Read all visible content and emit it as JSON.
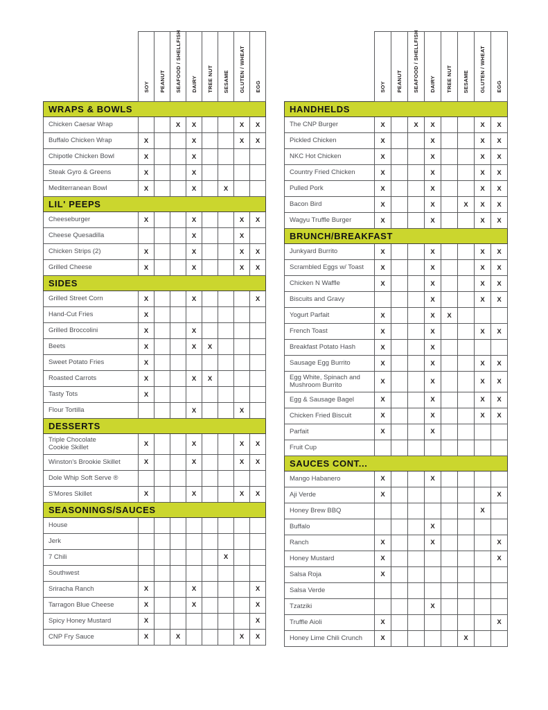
{
  "mark_symbol": "X",
  "colors": {
    "section_band": "#cbd62e",
    "grid_border": "#58595b",
    "label_text": "#4d4e53",
    "mark_text": "#231f20",
    "section_text": "#131313"
  },
  "columns": [
    {
      "key": "soy",
      "label": "SOY"
    },
    {
      "key": "peanut",
      "label": "PEANUT"
    },
    {
      "key": "seafood_shellfish",
      "label": "SEAFOOD / SHELLFISH"
    },
    {
      "key": "dairy",
      "label": "DAIRY"
    },
    {
      "key": "tree_nut",
      "label": "TREE NUT"
    },
    {
      "key": "sesame",
      "label": "SESAME"
    },
    {
      "key": "gluten_wheat",
      "label": "GLUTEN / WHEAT"
    },
    {
      "key": "egg",
      "label": "EGG"
    }
  ],
  "tables": [
    {
      "id": "left",
      "sections": [
        {
          "title": "WRAPS & BOWLS",
          "rows": [
            {
              "label": "Chicken Caesar Wrap",
              "allergens": [
                "seafood_shellfish",
                "dairy",
                "gluten_wheat",
                "egg"
              ]
            },
            {
              "label": "Buffalo Chicken Wrap",
              "allergens": [
                "soy",
                "dairy",
                "gluten_wheat",
                "egg"
              ]
            },
            {
              "label": "Chipotle Chicken Bowl",
              "allergens": [
                "soy",
                "dairy"
              ]
            },
            {
              "label": "Steak Gyro & Greens",
              "allergens": [
                "soy",
                "dairy"
              ]
            },
            {
              "label": "Mediterranean Bowl",
              "allergens": [
                "soy",
                "dairy",
                "sesame"
              ]
            }
          ]
        },
        {
          "title": "LIL' PEEPS",
          "rows": [
            {
              "label": "Cheeseburger",
              "allergens": [
                "soy",
                "dairy",
                "gluten_wheat",
                "egg"
              ]
            },
            {
              "label": "Cheese Quesadilla",
              "allergens": [
                "dairy",
                "gluten_wheat"
              ]
            },
            {
              "label": "Chicken Strips (2)",
              "allergens": [
                "soy",
                "dairy",
                "gluten_wheat",
                "egg"
              ]
            },
            {
              "label": "Grilled Cheese",
              "allergens": [
                "soy",
                "dairy",
                "gluten_wheat",
                "egg"
              ]
            }
          ]
        },
        {
          "title": "SIDES",
          "rows": [
            {
              "label": "Grilled Street Corn",
              "allergens": [
                "soy",
                "dairy",
                "egg"
              ]
            },
            {
              "label": "Hand-Cut Fries",
              "allergens": [
                "soy"
              ]
            },
            {
              "label": "Grilled Broccolini",
              "allergens": [
                "soy",
                "dairy"
              ]
            },
            {
              "label": "Beets",
              "allergens": [
                "soy",
                "dairy",
                "tree_nut"
              ]
            },
            {
              "label": "Sweet Potato Fries",
              "allergens": [
                "soy"
              ]
            },
            {
              "label": "Roasted Carrots",
              "allergens": [
                "soy",
                "dairy",
                "tree_nut"
              ]
            },
            {
              "label": "Tasty Tots",
              "allergens": [
                "soy"
              ]
            },
            {
              "label": "Flour Tortilla",
              "allergens": [
                "dairy",
                "gluten_wheat"
              ]
            }
          ]
        },
        {
          "title": "DESSERTS",
          "rows": [
            {
              "label": "Triple Chocolate\nCookie Skillet",
              "allergens": [
                "soy",
                "dairy",
                "gluten_wheat",
                "egg"
              ]
            },
            {
              "label": "Winston's Brookie Skillet",
              "allergens": [
                "soy",
                "dairy",
                "gluten_wheat",
                "egg"
              ]
            },
            {
              "label": "Dole Whip Soft Serve ®",
              "allergens": []
            },
            {
              "label": "S'Mores Skillet",
              "allergens": [
                "soy",
                "dairy",
                "gluten_wheat",
                "egg"
              ]
            }
          ]
        },
        {
          "title": "SEASONINGS/SAUCES",
          "rows": [
            {
              "label": "House",
              "allergens": []
            },
            {
              "label": "Jerk",
              "allergens": []
            },
            {
              "label": "7 Chili",
              "allergens": [
                "sesame"
              ]
            },
            {
              "label": "Southwest",
              "allergens": []
            },
            {
              "label": "Sriracha Ranch",
              "allergens": [
                "soy",
                "dairy",
                "egg"
              ]
            },
            {
              "label": "Tarragon Blue Cheese",
              "allergens": [
                "soy",
                "dairy",
                "egg"
              ]
            },
            {
              "label": "Spicy Honey Mustard",
              "allergens": [
                "soy",
                "egg"
              ]
            },
            {
              "label": "CNP Fry Sauce",
              "allergens": [
                "soy",
                "seafood_shellfish",
                "gluten_wheat",
                "egg"
              ]
            }
          ]
        }
      ]
    },
    {
      "id": "right",
      "sections": [
        {
          "title": "HANDHELDS",
          "rows": [
            {
              "label": "The CNP Burger",
              "allergens": [
                "soy",
                "seafood_shellfish",
                "dairy",
                "gluten_wheat",
                "egg"
              ]
            },
            {
              "label": "Pickled Chicken",
              "allergens": [
                "soy",
                "dairy",
                "gluten_wheat",
                "egg"
              ]
            },
            {
              "label": "NKC Hot Chicken",
              "allergens": [
                "soy",
                "dairy",
                "gluten_wheat",
                "egg"
              ]
            },
            {
              "label": "Country Fried Chicken",
              "allergens": [
                "soy",
                "dairy",
                "gluten_wheat",
                "egg"
              ]
            },
            {
              "label": "Pulled Pork",
              "allergens": [
                "soy",
                "dairy",
                "gluten_wheat",
                "egg"
              ]
            },
            {
              "label": "Bacon Bird",
              "allergens": [
                "soy",
                "dairy",
                "sesame",
                "gluten_wheat",
                "egg"
              ]
            },
            {
              "label": "Wagyu Truffle Burger",
              "allergens": [
                "soy",
                "dairy",
                "gluten_wheat",
                "egg"
              ]
            }
          ]
        },
        {
          "title": "BRUNCH/BREAKFAST",
          "rows": [
            {
              "label": "Junkyard Burrito",
              "allergens": [
                "soy",
                "dairy",
                "gluten_wheat",
                "egg"
              ]
            },
            {
              "label": "Scrambled Eggs w/ Toast",
              "allergens": [
                "soy",
                "dairy",
                "gluten_wheat",
                "egg"
              ]
            },
            {
              "label": "Chicken N Waffle",
              "allergens": [
                "soy",
                "dairy",
                "gluten_wheat",
                "egg"
              ]
            },
            {
              "label": "Biscuits and Gravy",
              "allergens": [
                "dairy",
                "gluten_wheat",
                "egg"
              ]
            },
            {
              "label": "Yogurt Parfait",
              "allergens": [
                "soy",
                "dairy",
                "tree_nut"
              ]
            },
            {
              "label": "French Toast",
              "allergens": [
                "soy",
                "dairy",
                "gluten_wheat",
                "egg"
              ]
            },
            {
              "label": "Breakfast Potato Hash",
              "allergens": [
                "soy",
                "dairy"
              ]
            },
            {
              "label": "Sausage Egg Burrito",
              "allergens": [
                "soy",
                "dairy",
                "gluten_wheat",
                "egg"
              ]
            },
            {
              "label": "Egg White, Spinach and\nMushroom Burrito",
              "allergens": [
                "soy",
                "dairy",
                "gluten_wheat",
                "egg"
              ]
            },
            {
              "label": "Egg & Sausage Bagel",
              "allergens": [
                "soy",
                "dairy",
                "gluten_wheat",
                "egg"
              ]
            },
            {
              "label": "Chicken Fried Biscuit",
              "allergens": [
                "soy",
                "dairy",
                "gluten_wheat",
                "egg"
              ]
            },
            {
              "label": "Parfait",
              "allergens": [
                "soy",
                "dairy"
              ]
            },
            {
              "label": "Fruit Cup",
              "allergens": []
            }
          ]
        },
        {
          "title": "SAUCES CONT...",
          "rows": [
            {
              "label": "Mango Habanero",
              "allergens": [
                "soy",
                "dairy"
              ]
            },
            {
              "label": "Aji Verde",
              "allergens": [
                "soy",
                "egg"
              ]
            },
            {
              "label": "Honey Brew BBQ",
              "allergens": [
                "gluten_wheat"
              ]
            },
            {
              "label": "Buffalo",
              "allergens": [
                "dairy"
              ]
            },
            {
              "label": "Ranch",
              "allergens": [
                "soy",
                "dairy",
                "egg"
              ]
            },
            {
              "label": "Honey Mustard",
              "allergens": [
                "soy",
                "egg"
              ]
            },
            {
              "label": "Salsa Roja",
              "allergens": [
                "soy"
              ]
            },
            {
              "label": "Salsa Verde",
              "allergens": []
            },
            {
              "label": "Tzatziki",
              "allergens": [
                "dairy"
              ]
            },
            {
              "label": "Truffle Aioli",
              "allergens": [
                "soy",
                "egg"
              ]
            },
            {
              "label": "Honey Lime Chili Crunch",
              "allergens": [
                "soy",
                "sesame"
              ]
            }
          ]
        }
      ]
    }
  ]
}
